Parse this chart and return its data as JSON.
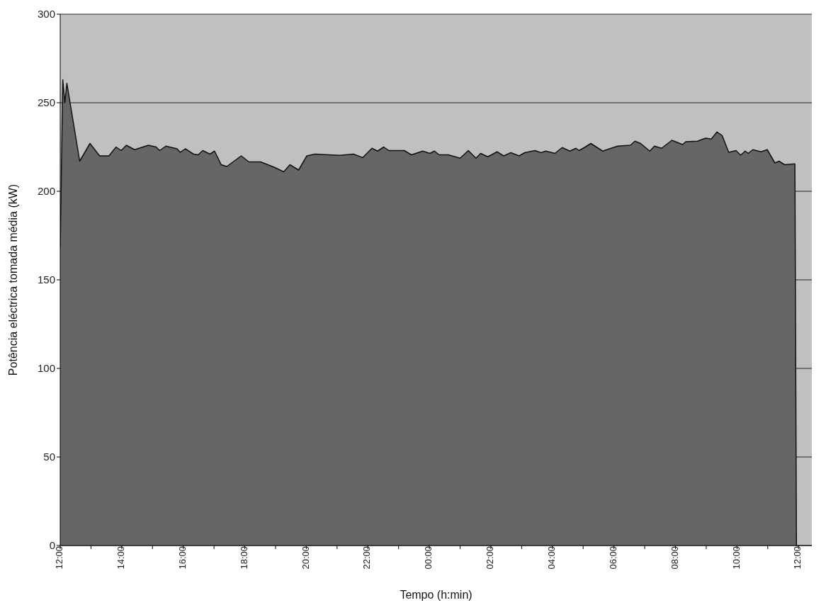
{
  "chart_data": {
    "type": "area",
    "xlabel": "Tempo (h:min)",
    "ylabel": "Potência eléctrica tomada média (kW)",
    "x": [
      "2000-01-01T12:00",
      "2000-01-01T12:05",
      "2000-01-01T12:09",
      "2000-01-01T12:13",
      "2000-01-01T12:38",
      "2000-01-01T12:58",
      "2000-01-01T13:17",
      "2000-01-01T13:35",
      "2000-01-01T13:49",
      "2000-01-01T13:59",
      "2000-01-01T14:09",
      "2000-01-01T14:25",
      "2000-01-01T14:52",
      "2000-01-01T15:07",
      "2000-01-01T15:14",
      "2000-01-01T15:26",
      "2000-01-01T15:48",
      "2000-01-01T15:54",
      "2000-01-01T16:04",
      "2000-01-01T16:20",
      "2000-01-01T16:29",
      "2000-01-01T16:38",
      "2000-01-01T16:52",
      "2000-01-01T17:01",
      "2000-01-01T17:14",
      "2000-01-01T17:25",
      "2000-01-01T17:53",
      "2000-01-01T18:08",
      "2000-01-01T18:31",
      "2000-01-01T18:58",
      "2000-01-01T19:16",
      "2000-01-01T19:28",
      "2000-01-01T19:45",
      "2000-01-01T20:01",
      "2000-01-01T20:17",
      "2000-01-01T21:05",
      "2000-01-01T21:32",
      "2000-01-01T21:50",
      "2000-01-01T22:08",
      "2000-01-01T22:19",
      "2000-01-01T22:31",
      "2000-01-01T22:41",
      "2000-01-01T23:11",
      "2000-01-01T23:25",
      "2000-01-01T23:47",
      "2000-01-02T00:01",
      "2000-01-02T00:10",
      "2000-01-02T00:19",
      "2000-01-02T00:37",
      "2000-01-02T01:00",
      "2000-01-02T01:16",
      "2000-01-02T01:31",
      "2000-01-02T01:40",
      "2000-01-02T01:54",
      "2000-01-02T02:12",
      "2000-01-02T02:25",
      "2000-01-02T02:39",
      "2000-01-02T02:55",
      "2000-01-02T03:06",
      "2000-01-02T03:26",
      "2000-01-02T03:38",
      "2000-01-02T03:47",
      "2000-01-02T04:05",
      "2000-01-02T04:19",
      "2000-01-02T04:34",
      "2000-01-02T04:46",
      "2000-01-02T04:52",
      "2000-01-02T05:04",
      "2000-01-02T05:15",
      "2000-01-02T05:38",
      "2000-01-02T06:07",
      "2000-01-02T06:32",
      "2000-01-02T06:41",
      "2000-01-02T06:52",
      "2000-01-02T07:10",
      "2000-01-02T07:19",
      "2000-01-02T07:33",
      "2000-01-02T07:53",
      "2000-01-02T08:14",
      "2000-01-02T08:20",
      "2000-01-02T08:43",
      "2000-01-02T08:59",
      "2000-01-02T09:10",
      "2000-01-02T09:21",
      "2000-01-02T09:31",
      "2000-01-02T09:44",
      "2000-01-02T09:58",
      "2000-01-02T10:07",
      "2000-01-02T10:16",
      "2000-01-02T10:22",
      "2000-01-02T10:31",
      "2000-01-02T10:47",
      "2000-01-02T10:59",
      "2000-01-02T11:14",
      "2000-01-02T11:22",
      "2000-01-02T11:33",
      "2000-01-02T11:53",
      "2000-01-02T11:56"
    ],
    "series": [
      {
        "color": "#666666",
        "values": [
          168,
          263,
          250,
          261,
          217,
          227,
          220,
          220,
          225,
          223,
          226,
          223.5,
          226,
          225,
          223,
          225.5,
          224,
          222,
          224,
          221,
          220.6,
          223,
          221,
          222.7,
          215,
          214,
          220,
          216.6,
          216.6,
          213.5,
          211,
          215,
          212,
          220,
          221,
          220.3,
          221,
          219,
          224.3,
          222.7,
          225,
          223,
          223,
          220.6,
          222.7,
          221.4,
          222.7,
          220.6,
          220.6,
          218.7,
          223,
          218.7,
          221.4,
          219.5,
          222.3,
          220,
          221.8,
          220,
          221.8,
          223,
          221.8,
          222.7,
          221.4,
          224.7,
          222.7,
          224.3,
          223,
          225,
          227,
          222.7,
          225.5,
          226,
          228.3,
          227,
          222.7,
          225.5,
          224.3,
          228.8,
          226.4,
          228,
          228.3,
          230,
          229.5,
          233.5,
          231.5,
          222,
          223,
          220.4,
          222.7,
          221.4,
          223.5,
          222.3,
          223.5,
          216,
          217,
          215,
          215.5,
          0
        ]
      }
    ],
    "xlim": [
      "2000-01-01T12:00",
      "2000-01-02T12:26"
    ],
    "xticks": [
      {
        "value": "2000-01-01T12:00",
        "label": "12:00"
      },
      {
        "value": "2000-01-01T13:00",
        "label": null
      },
      {
        "value": "2000-01-01T14:00",
        "label": "14:00"
      },
      {
        "value": "2000-01-01T15:00",
        "label": null
      },
      {
        "value": "2000-01-01T16:00",
        "label": "16:00"
      },
      {
        "value": "2000-01-01T17:00",
        "label": null
      },
      {
        "value": "2000-01-01T18:00",
        "label": "18:00"
      },
      {
        "value": "2000-01-01T19:00",
        "label": null
      },
      {
        "value": "2000-01-01T20:00",
        "label": "20:00"
      },
      {
        "value": "2000-01-01T21:00",
        "label": null
      },
      {
        "value": "2000-01-01T22:00",
        "label": "22:00"
      },
      {
        "value": "2000-01-01T23:00",
        "label": null
      },
      {
        "value": "2000-01-02T00:00",
        "label": "00:00"
      },
      {
        "value": "2000-01-02T01:00",
        "label": null
      },
      {
        "value": "2000-01-02T02:00",
        "label": "02:00"
      },
      {
        "value": "2000-01-02T03:00",
        "label": null
      },
      {
        "value": "2000-01-02T04:00",
        "label": "04:00"
      },
      {
        "value": "2000-01-02T05:00",
        "label": null
      },
      {
        "value": "2000-01-02T06:00",
        "label": "06:00"
      },
      {
        "value": "2000-01-02T07:00",
        "label": null
      },
      {
        "value": "2000-01-02T08:00",
        "label": "08:00"
      },
      {
        "value": "2000-01-02T09:00",
        "label": null
      },
      {
        "value": "2000-01-02T10:00",
        "label": "10:00"
      },
      {
        "value": "2000-01-02T11:00",
        "label": null
      },
      {
        "value": "2000-01-02T12:00",
        "label": "12:00"
      }
    ],
    "ylim": [
      0,
      300
    ],
    "yticks": [
      0,
      50,
      100,
      150,
      200,
      250,
      300
    ],
    "grid": "y"
  }
}
